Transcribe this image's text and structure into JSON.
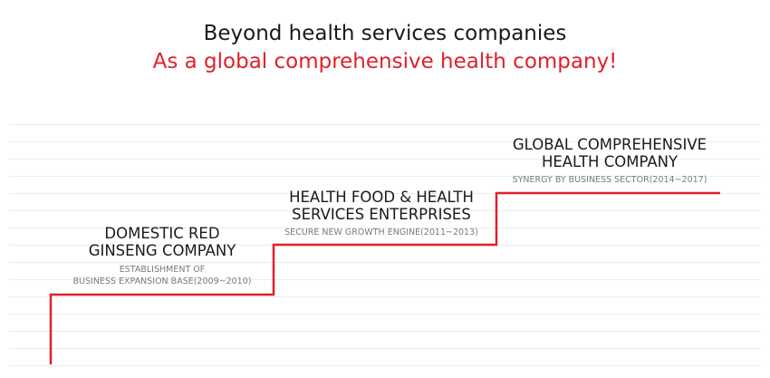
{
  "headline": {
    "line1": "Beyond health services companies",
    "line2": "As a global comprehensive health company!"
  },
  "colors": {
    "accent": "#e0202a",
    "text": "#1a1a1a",
    "subtext": "#7a7a7a",
    "grid": "#ececec"
  },
  "stages": [
    {
      "title_line1": "DOMESTIC RED",
      "title_line2": "GINSENG COMPANY",
      "subtitle_line1": "ESTABLISHMENT OF",
      "subtitle_line2": "BUSINESS EXPANSION BASE(2009~2010)"
    },
    {
      "title_line1": "HEALTH FOOD & HEALTH",
      "title_line2": "SERVICES ENTERPRISES",
      "subtitle_line1": "SECURE NEW GROWTH ENGINE(2011~2013)"
    },
    {
      "title_line1": "GLOBAL COMPREHENSIVE",
      "title_line2": "HEALTH COMPANY",
      "subtitle_line1": "SYNERGY BY BUSINESS SECTOR(2014~2017)"
    }
  ]
}
